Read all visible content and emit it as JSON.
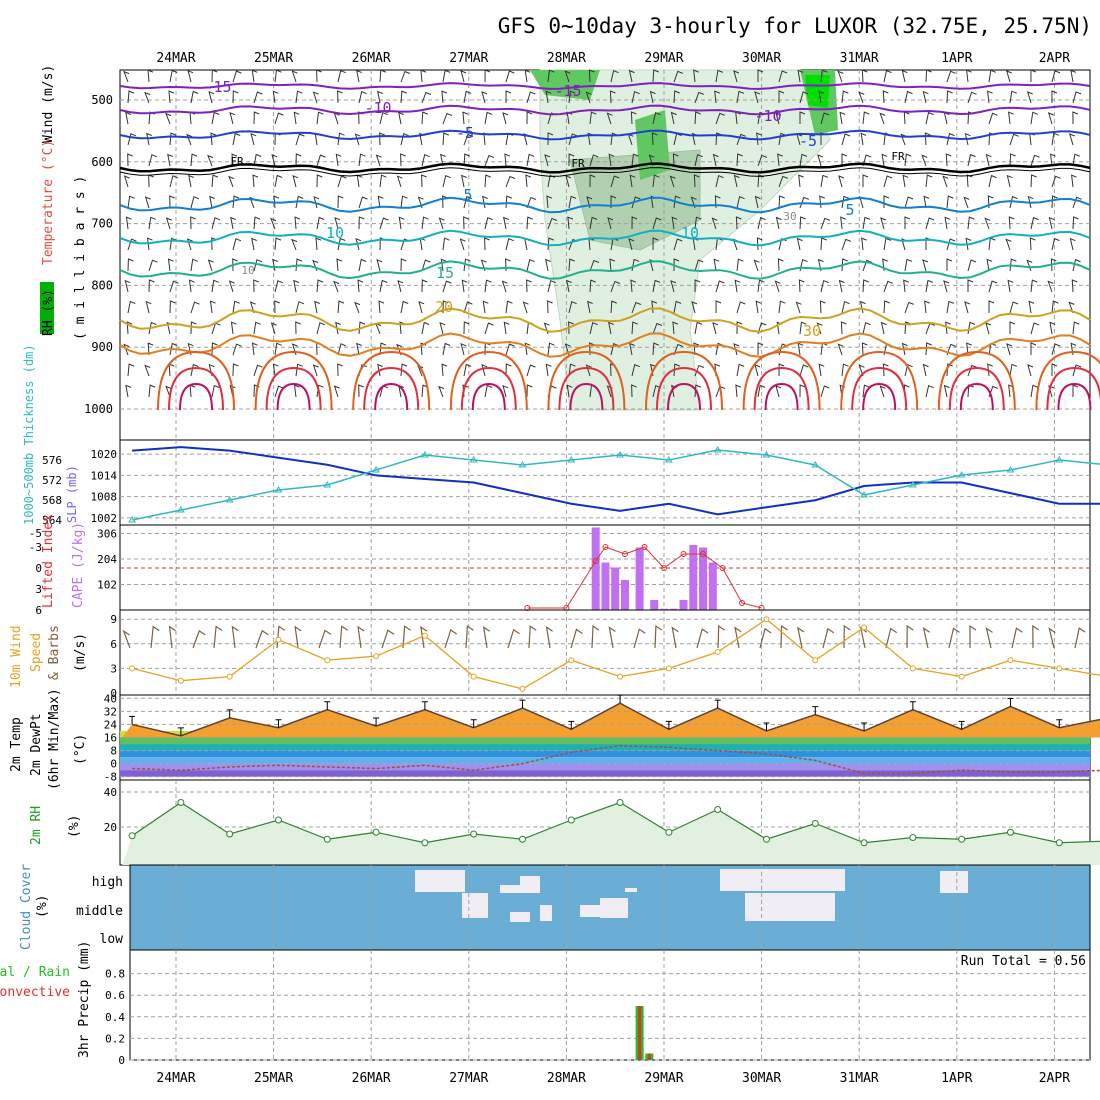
{
  "title": "GFS 0~10day 3-hourly for LUXOR (32.75E, 25.75N)",
  "dates": [
    "24MAR",
    "25MAR",
    "26MAR",
    "27MAR",
    "28MAR",
    "29MAR",
    "30MAR",
    "31MAR",
    "1APR",
    "2APR"
  ],
  "colors": {
    "wind": "#000000",
    "temperature": "#d02020",
    "rh": "#00b000",
    "thickness": "#30b8c0",
    "slp": "#1030c0",
    "lifted_index": "#e03030",
    "cape": "#c070f0",
    "wind10_speed": "#e8a020",
    "wind10_barbs": "#806040",
    "rh2m": "#20a020",
    "cloud_bg": "#6aaed6",
    "cloud": "#f0eef4",
    "precip_total": "#20c020",
    "precip_conv": "#e03030"
  },
  "panels": {
    "upper": {
      "ylabel_wind": "Wind (m/s)",
      "ylabel_temp": "Temperature (°C)",
      "ylabel_rh": "RH (%)",
      "ylabel_mb": "( m i l l i b a r s )",
      "levels": [
        500,
        600,
        700,
        800,
        900,
        1000
      ],
      "contour_labels": [
        "-15",
        "-15",
        "-10",
        "-10",
        "-5",
        "-5",
        "FR",
        "FR",
        "FR",
        "5",
        "5",
        "10",
        "10",
        "15",
        "20",
        "30",
        "10",
        "30"
      ]
    },
    "thickness_slp": {
      "ylabel_thk": "1000~500mb Thickness (dm)",
      "ylabel_slp": "SLP (mb)",
      "thk_ticks": [
        564,
        568,
        572,
        576
      ],
      "slp_ticks": [
        1002,
        1008,
        1014,
        1020
      ]
    },
    "cape_li": {
      "ylabel_li": "Lifted Index",
      "ylabel_cape": "CAPE (J/kg)",
      "li_ticks": [
        "-5",
        "-3",
        "0",
        "3",
        "6"
      ],
      "cape_ticks": [
        102,
        204,
        306
      ]
    },
    "wind10": {
      "ylabel_1": "10m Wind",
      "ylabel_2": "Speed",
      "ylabel_3": "& Barbs",
      "ylabel_unit": "(m/s)",
      "ticks": [
        0,
        3,
        6,
        9
      ]
    },
    "temp2m": {
      "ylabel_1": "2m Temp",
      "ylabel_2": "2m DewPt",
      "ylabel_3": "(6hr Min/Max)",
      "ylabel_unit": "(°C)",
      "ticks": [
        "-8",
        "0",
        "8",
        "16",
        "24",
        "32",
        "40"
      ]
    },
    "rh2m": {
      "ylabel": "2m RH",
      "unit": "(%)",
      "ticks": [
        20,
        40
      ]
    },
    "cloud": {
      "ylabel": "Cloud Cover",
      "unit": "(%)",
      "levels": [
        "high",
        "middle",
        "low"
      ]
    },
    "precip": {
      "ylabel_1": "Total / Rain",
      "ylabel_2": "Convective",
      "ylabel_3": "3hr Precip (mm)",
      "run_total": "Run Total = 0.56",
      "ticks": [
        "0",
        "0.2",
        "0.4",
        "0.6",
        "0.8"
      ]
    }
  },
  "chart_data": [
    {
      "type": "line",
      "name": "slp",
      "x_days": [
        0,
        0.5,
        1,
        1.5,
        2,
        2.5,
        3,
        3.5,
        4,
        4.5,
        5,
        5.5,
        6,
        6.5,
        7,
        7.5,
        8,
        8.5,
        9,
        9.5,
        10
      ],
      "values": [
        1021,
        1022,
        1021,
        1019,
        1017,
        1014,
        1013,
        1012,
        1009,
        1006,
        1004,
        1006,
        1003,
        1005,
        1007,
        1011,
        1012,
        1012,
        1009,
        1006,
        1006
      ],
      "ylim": [
        1000,
        1024
      ]
    },
    {
      "type": "line",
      "name": "thickness",
      "x_days": [
        0,
        0.5,
        1,
        1.5,
        2,
        2.5,
        3,
        3.5,
        4,
        4.5,
        5,
        5.5,
        6,
        6.5,
        7,
        7.5,
        8,
        8.5,
        9,
        9.5,
        10
      ],
      "values": [
        564,
        566,
        568,
        570,
        571,
        574,
        577,
        576,
        575,
        576,
        577,
        576,
        578,
        577,
        575,
        569,
        571,
        573,
        574,
        576,
        575
      ],
      "ylim": [
        563,
        580
      ]
    },
    {
      "type": "bar",
      "name": "cape",
      "x_days": [
        4.3,
        4.4,
        4.5,
        4.6,
        4.75,
        4.9,
        5.0,
        5.1,
        5.2,
        5.3,
        5.4,
        5.5
      ],
      "values": [
        330,
        190,
        170,
        120,
        250,
        40,
        5,
        5,
        40,
        260,
        250,
        190
      ],
      "ylim": [
        0,
        340
      ]
    },
    {
      "type": "line",
      "name": "lifted_index",
      "x_days": [
        3.6,
        4.0,
        4.3,
        4.4,
        4.6,
        4.8,
        5.0,
        5.2,
        5.4,
        5.6,
        5.8,
        6.0
      ],
      "values": [
        6,
        6,
        -1,
        -3,
        -2,
        -3,
        0,
        -2,
        -2,
        0,
        5,
        6
      ],
      "ylim": [
        6,
        -6
      ]
    },
    {
      "type": "line",
      "name": "wind10_speed",
      "x_days": [
        0,
        0.5,
        1,
        1.5,
        2,
        2.5,
        3,
        3.5,
        4,
        4.5,
        5,
        5.5,
        6,
        6.5,
        7,
        7.5,
        8,
        8.5,
        9,
        9.5,
        10
      ],
      "values": [
        3,
        1.5,
        2,
        6.5,
        4,
        4.5,
        7,
        2,
        0.5,
        4,
        2,
        3,
        5,
        9,
        4,
        8,
        3,
        2,
        4,
        3,
        2
      ],
      "ylim": [
        0,
        10
      ]
    },
    {
      "type": "area",
      "name": "temp2m",
      "x_days": [
        0,
        0.5,
        1,
        1.5,
        2,
        2.5,
        3,
        3.5,
        4,
        4.5,
        5,
        5.5,
        6,
        6.5,
        7,
        7.5,
        8,
        8.5,
        9,
        9.5,
        10
      ],
      "values": [
        24,
        17,
        28,
        22,
        33,
        23,
        33,
        22,
        34,
        21,
        37,
        21,
        34,
        20,
        30,
        20,
        33,
        21,
        35,
        22,
        28
      ],
      "ylim": [
        -10,
        42
      ]
    },
    {
      "type": "line",
      "name": "dewpt2m",
      "x_days": [
        0,
        0.5,
        1,
        1.5,
        2,
        2.5,
        3,
        3.5,
        4,
        4.5,
        5,
        5.5,
        6,
        6.5,
        7,
        7.5,
        8,
        8.5,
        9,
        9.5,
        10
      ],
      "values": [
        -3,
        -4,
        -2,
        -1,
        -2,
        -3,
        -1,
        -4,
        0,
        7,
        11,
        10,
        8,
        6,
        2,
        -6,
        -6,
        -4,
        -5,
        -5,
        -4
      ],
      "ylim": [
        -10,
        42
      ]
    },
    {
      "type": "area",
      "name": "rh2m",
      "x_days": [
        0,
        0.5,
        1,
        1.5,
        2,
        2.5,
        3,
        3.5,
        4,
        4.5,
        5,
        5.5,
        6,
        6.5,
        7,
        7.5,
        8,
        8.5,
        9,
        9.5,
        10
      ],
      "values": [
        15,
        34,
        16,
        24,
        13,
        17,
        11,
        16,
        13,
        24,
        34,
        17,
        30,
        13,
        22,
        11,
        14,
        13,
        17,
        11,
        12
      ],
      "ylim": [
        0,
        40
      ]
    },
    {
      "type": "bar",
      "name": "precip",
      "categories": [
        "28MAR 18Z",
        "29MAR 00Z"
      ],
      "values": [
        0.5,
        0.06
      ],
      "ylim": [
        0,
        1.0
      ]
    }
  ]
}
